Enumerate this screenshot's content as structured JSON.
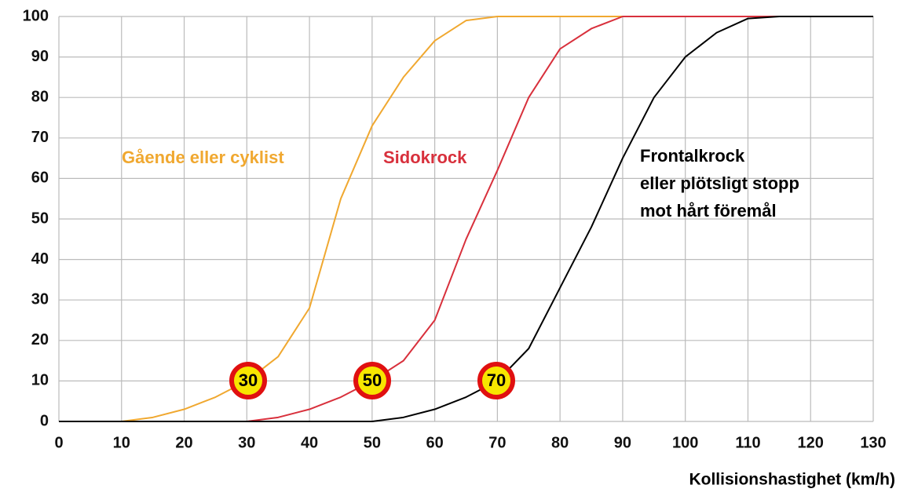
{
  "chart_data": {
    "type": "line",
    "x_label": "Kollisionshastighet (km/h)",
    "x": [
      0,
      5,
      10,
      15,
      20,
      25,
      30,
      35,
      40,
      45,
      50,
      55,
      60,
      65,
      70,
      75,
      80,
      85,
      90,
      95,
      100,
      105,
      110,
      115,
      120,
      125,
      130
    ],
    "series": [
      {
        "name": [
          "Gående eller cyklist"
        ],
        "color": "#f0a830",
        "values": [
          0,
          0,
          0,
          1,
          3,
          6,
          10,
          16,
          28,
          55,
          73,
          85,
          94,
          99,
          100,
          100,
          100,
          100,
          100,
          100,
          100,
          100,
          100,
          100,
          100,
          100,
          100
        ]
      },
      {
        "name": [
          "Sidokrock"
        ],
        "color": "#d8303c",
        "values": [
          0,
          0,
          0,
          0,
          0,
          0,
          0,
          1,
          3,
          6,
          10,
          15,
          25,
          45,
          62,
          80,
          92,
          97,
          100,
          100,
          100,
          100,
          100,
          100,
          100,
          100,
          100
        ]
      },
      {
        "name": [
          "Frontalkrock",
          "eller plötsligt stopp",
          "mot hårt föremål"
        ],
        "color": "#000000",
        "values": [
          0,
          0,
          0,
          0,
          0,
          0,
          0,
          0,
          0,
          0,
          0,
          1,
          3,
          6,
          10,
          18,
          33,
          48,
          65,
          80,
          90,
          96,
          99.5,
          100,
          100,
          100,
          100
        ]
      }
    ],
    "speed_signs": [
      "30",
      "50",
      "70"
    ],
    "xlim": [
      0,
      130
    ],
    "xticks": [
      0,
      10,
      20,
      30,
      40,
      50,
      60,
      70,
      80,
      90,
      100,
      110,
      120,
      130
    ],
    "ylim": [
      0,
      100
    ],
    "yticks": [
      0,
      10,
      20,
      30,
      40,
      50,
      60,
      70,
      80,
      90,
      100
    ],
    "grid": true
  }
}
